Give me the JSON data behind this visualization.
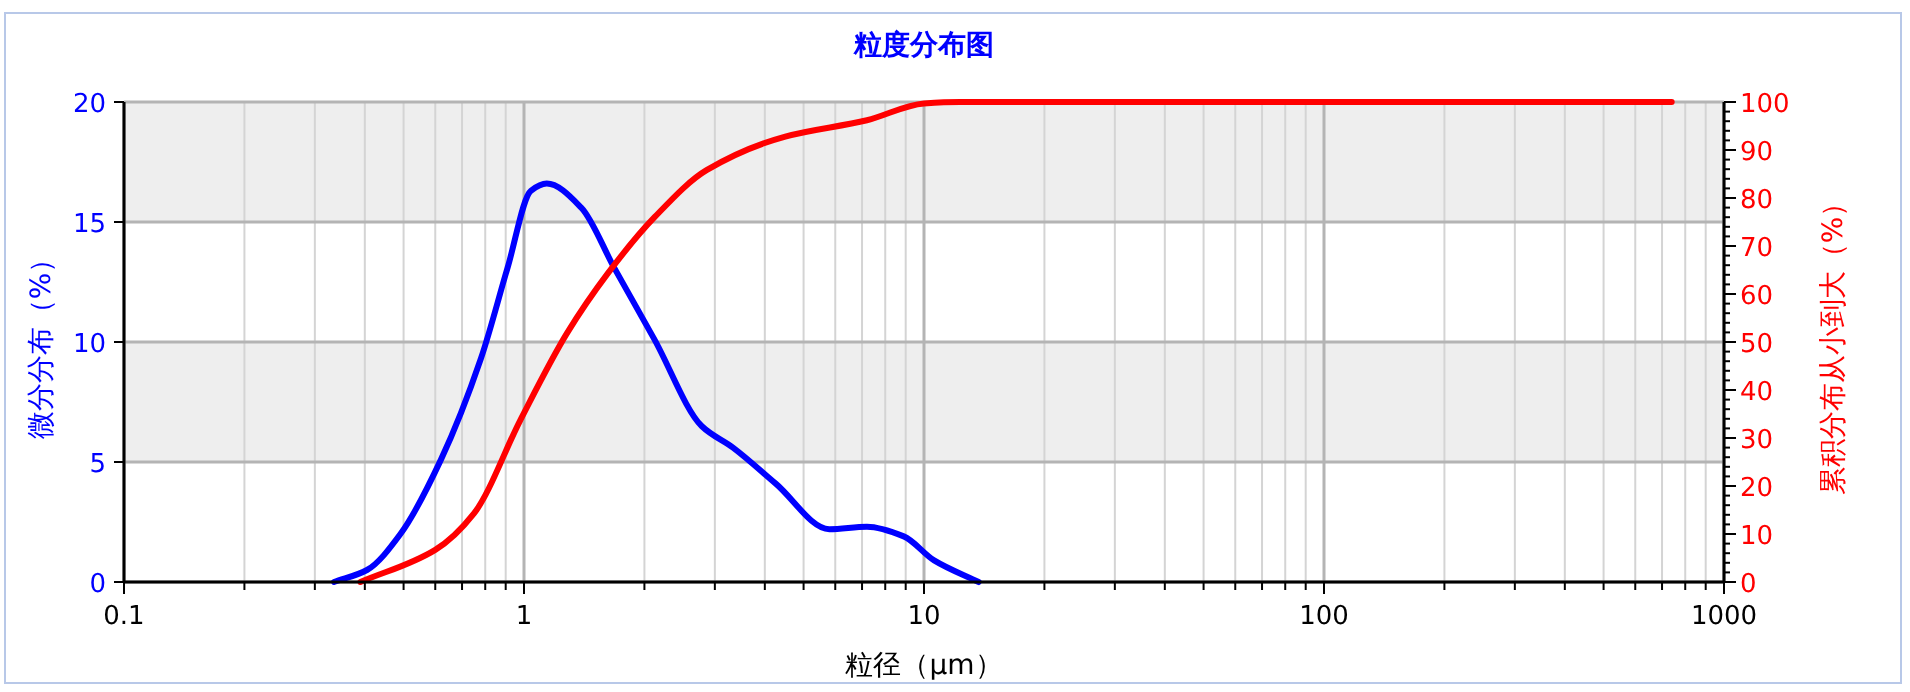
{
  "chart_data": {
    "type": "line",
    "title": "粒度分布图",
    "xlabel": "粒径（μm）",
    "ylabel": "微分分布（%）",
    "y2label": "累积分布从小到大（%）",
    "log": "x",
    "grid": true,
    "marker": "none",
    "line_style": "solid",
    "xlim": [
      0.1,
      1000
    ],
    "xticks": [
      {
        "value": 0.1,
        "label": "0.1"
      },
      {
        "value": 0.2,
        "label": null
      },
      {
        "value": 0.3,
        "label": null
      },
      {
        "value": 0.4,
        "label": null
      },
      {
        "value": 0.5,
        "label": null
      },
      {
        "value": 0.6,
        "label": null
      },
      {
        "value": 0.7,
        "label": null
      },
      {
        "value": 0.8,
        "label": null
      },
      {
        "value": 0.9,
        "label": null
      },
      1,
      {
        "value": 2,
        "label": null
      },
      {
        "value": 3,
        "label": null
      },
      {
        "value": 4,
        "label": null
      },
      {
        "value": 5,
        "label": null
      },
      {
        "value": 6,
        "label": null
      },
      {
        "value": 7,
        "label": null
      },
      {
        "value": 8,
        "label": null
      },
      {
        "value": 9,
        "label": null
      },
      10,
      {
        "value": 20,
        "label": null
      },
      {
        "value": 30,
        "label": null
      },
      {
        "value": 40,
        "label": null
      },
      {
        "value": 50,
        "label": null
      },
      {
        "value": 60,
        "label": null
      },
      {
        "value": 70,
        "label": null
      },
      {
        "value": 80,
        "label": null
      },
      {
        "value": 90,
        "label": null
      },
      100,
      {
        "value": 200,
        "label": null
      },
      {
        "value": 300,
        "label": null
      },
      {
        "value": 400,
        "label": null
      },
      {
        "value": 500,
        "label": null
      },
      {
        "value": 600,
        "label": null
      },
      {
        "value": 700,
        "label": null
      },
      {
        "value": 800,
        "label": null
      },
      {
        "value": 900,
        "label": null
      },
      1000
    ],
    "ylim": [
      0,
      20
    ],
    "yticks": [
      0,
      5,
      10,
      15,
      20
    ],
    "y2lim": [
      0,
      100
    ],
    "y2ticks": [
      0,
      {
        "value": 2,
        "label": null
      },
      {
        "value": 4,
        "label": null
      },
      {
        "value": 6,
        "label": null
      },
      {
        "value": 8,
        "label": null
      },
      10,
      {
        "value": 12,
        "label": null
      },
      {
        "value": 14,
        "label": null
      },
      {
        "value": 16,
        "label": null
      },
      {
        "value": 18,
        "label": null
      },
      20,
      {
        "value": 22,
        "label": null
      },
      {
        "value": 24,
        "label": null
      },
      {
        "value": 26,
        "label": null
      },
      {
        "value": 28,
        "label": null
      },
      30,
      {
        "value": 32,
        "label": null
      },
      {
        "value": 34,
        "label": null
      },
      {
        "value": 36,
        "label": null
      },
      {
        "value": 38,
        "label": null
      },
      40,
      {
        "value": 42,
        "label": null
      },
      {
        "value": 44,
        "label": null
      },
      {
        "value": 46,
        "label": null
      },
      {
        "value": 48,
        "label": null
      },
      50,
      {
        "value": 52,
        "label": null
      },
      {
        "value": 54,
        "label": null
      },
      {
        "value": 56,
        "label": null
      },
      {
        "value": 58,
        "label": null
      },
      60,
      {
        "value": 62,
        "label": null
      },
      {
        "value": 64,
        "label": null
      },
      {
        "value": 66,
        "label": null
      },
      {
        "value": 68,
        "label": null
      },
      70,
      {
        "value": 72,
        "label": null
      },
      {
        "value": 74,
        "label": null
      },
      {
        "value": 76,
        "label": null
      },
      {
        "value": 78,
        "label": null
      },
      80,
      {
        "value": 82,
        "label": null
      },
      {
        "value": 84,
        "label": null
      },
      {
        "value": 86,
        "label": null
      },
      {
        "value": 88,
        "label": null
      },
      90,
      {
        "value": 92,
        "label": null
      },
      {
        "value": 94,
        "label": null
      },
      {
        "value": 96,
        "label": null
      },
      {
        "value": 98,
        "label": null
      },
      100
    ],
    "bands": [
      {
        "axis": "y",
        "from": 5,
        "to": 10,
        "color": "#eeeeee"
      },
      {
        "axis": "y",
        "from": 15,
        "to": 20,
        "color": "#eeeeee"
      }
    ],
    "series": [
      {
        "color": "#0000ff",
        "x": [
          0.335,
          0.405,
          0.491,
          0.62,
          0.78,
          0.91,
          1.04,
          1.14,
          1.39,
          1.68,
          2.12,
          2.78,
          3.33,
          4.26,
          5.8,
          7.2,
          8.9,
          10.6,
          13.7
        ],
        "values": [
          0,
          0.5,
          2.0,
          5.1,
          9.3,
          13.1,
          16.3,
          16.6,
          15.6,
          13.1,
          10.1,
          6.5,
          5.6,
          4.1,
          2.2,
          2.3,
          1.9,
          0.9,
          0
        ]
      },
      {
        "color": "#ff0000",
        "axis": "y2",
        "x": [
          0.39,
          0.6,
          0.75,
          0.98,
          1.28,
          1.62,
          2.12,
          2.86,
          4.5,
          7.2,
          10,
          12.3,
          740
        ],
        "values": [
          0,
          6.7,
          14.3,
          33.8,
          51.8,
          64.3,
          76,
          85.8,
          92.8,
          96.2,
          99.7,
          100,
          100
        ]
      }
    ]
  }
}
